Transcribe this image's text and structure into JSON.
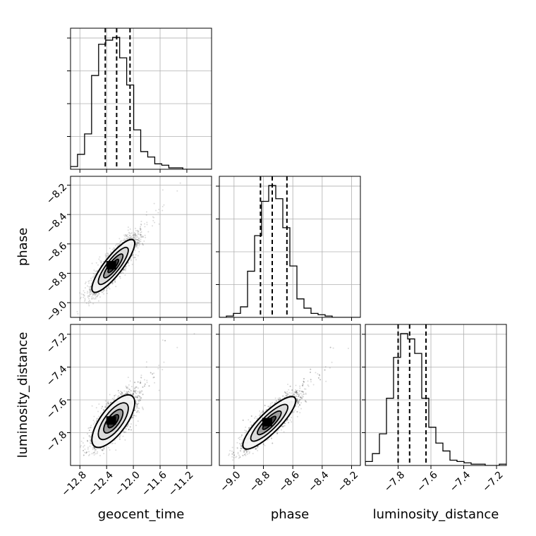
{
  "chart_data": {
    "type": "corner",
    "grid": true,
    "parameters": [
      "geocent_time",
      "phase",
      "luminosity_distance"
    ],
    "axes": {
      "geocent_time": {
        "label": "geocent_time",
        "range": [
          -12.94,
          -10.83
        ],
        "ticks": [
          -12.8,
          -12.4,
          -12.0,
          -11.6,
          -11.2
        ],
        "tick_labels": [
          "−12.8",
          "−12.4",
          "−12.0",
          "−11.6",
          "−11.2"
        ]
      },
      "phase": {
        "label": "phase",
        "range": [
          -9.1,
          -8.14
        ],
        "ticks": [
          -9.0,
          -8.8,
          -8.6,
          -8.4,
          -8.2
        ],
        "tick_labels": [
          "−9.0",
          "−8.8",
          "−8.6",
          "−8.4",
          "−8.2"
        ]
      },
      "luminosity_distance": {
        "label": "luminosity_distance",
        "range": [
          -8.0,
          -7.14
        ],
        "ticks": [
          -7.8,
          -7.6,
          -7.4,
          -7.2
        ],
        "tick_labels": [
          "−7.8",
          "−7.6",
          "−7.4",
          "−7.2"
        ]
      }
    },
    "quantiles": {
      "geocent_time": [
        -12.42,
        -12.25,
        -12.05
      ],
      "phase": [
        -8.82,
        -8.74,
        -8.64
      ],
      "luminosity_distance": [
        -7.8,
        -7.73,
        -7.63
      ]
    },
    "histograms": {
      "geocent_time": {
        "bin_edges": [
          -12.94,
          -12.835,
          -12.73,
          -12.625,
          -12.52,
          -12.415,
          -12.31,
          -12.205,
          -12.1,
          -11.995,
          -11.89,
          -11.785,
          -11.68,
          -11.575,
          -11.47,
          -11.365,
          -11.26,
          -11.155,
          -11.05,
          -10.945,
          -10.84
        ],
        "counts": [
          2,
          11,
          26,
          69,
          92,
          95,
          97,
          82,
          62,
          29,
          13,
          9,
          4,
          3,
          1,
          1,
          0,
          0,
          0,
          0
        ]
      },
      "phase": {
        "bin_edges": [
          -9.1,
          -9.052,
          -9.004,
          -8.956,
          -8.908,
          -8.86,
          -8.812,
          -8.764,
          -8.716,
          -8.668,
          -8.62,
          -8.572,
          -8.524,
          -8.476,
          -8.428,
          -8.38,
          -8.332,
          -8.284,
          -8.236,
          -8.188,
          -8.14
        ],
        "counts": [
          0,
          1,
          3,
          8,
          35,
          62,
          88,
          100,
          90,
          68,
          39,
          14,
          7,
          3,
          2,
          1,
          0,
          0,
          0,
          0
        ]
      },
      "luminosity_distance": {
        "bin_edges": [
          -8.0,
          -7.957,
          -7.914,
          -7.871,
          -7.828,
          -7.785,
          -7.742,
          -7.699,
          -7.656,
          -7.613,
          -7.57,
          -7.527,
          -7.484,
          -7.441,
          -7.398,
          -7.355,
          -7.312,
          -7.269,
          -7.226,
          -7.183,
          -7.14
        ],
        "counts": [
          3,
          9,
          24,
          51,
          82,
          100,
          96,
          85,
          51,
          29,
          17,
          11,
          4,
          3,
          2,
          1,
          1,
          0,
          0,
          1
        ]
      }
    },
    "contour_panels": [
      {
        "x": "geocent_time",
        "y": "phase",
        "center": [
          -12.3,
          -8.75
        ],
        "sigma": [
          0.16,
          0.09
        ],
        "rho": 0.85
      },
      {
        "x": "geocent_time",
        "y": "luminosity_distance",
        "center": [
          -12.3,
          -7.73
        ],
        "sigma": [
          0.16,
          0.08
        ],
        "rho": 0.7
      },
      {
        "x": "phase",
        "y": "luminosity_distance",
        "center": [
          -8.76,
          -7.74
        ],
        "sigma": [
          0.09,
          0.08
        ],
        "rho": 0.85
      }
    ]
  }
}
